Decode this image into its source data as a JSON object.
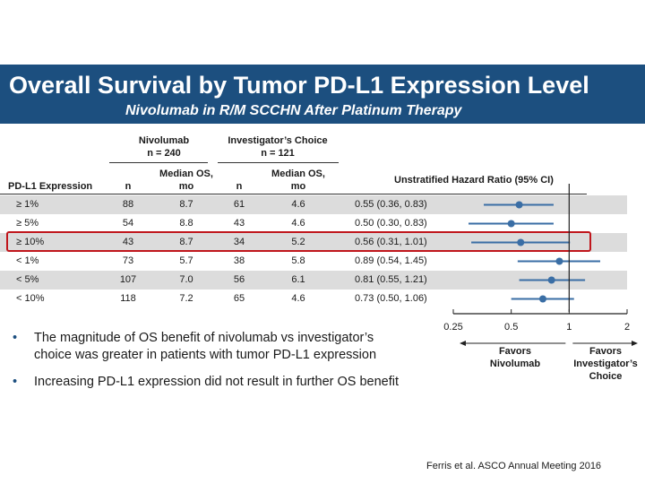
{
  "title": "Overall Survival by Tumor PD-L1 Expression Level",
  "subtitle": "Nivolumab in R/M SCCHN After Platinum Therapy",
  "table": {
    "group1_header": "Nivolumab",
    "group1_n": "n = 240",
    "group2_header": "Investigator’s Choice",
    "group2_n": "n = 121",
    "col_expr": "PD-L1 Expression",
    "col_n": "n",
    "col_os": "Median OS, mo",
    "col_hr": "Unstratified Hazard Ratio (95% CI)"
  },
  "chart_data": {
    "type": "forest",
    "title": "Unstratified Hazard Ratio (95% CI)",
    "axis_scale": "log",
    "xticks": [
      0.25,
      0.5,
      1,
      2
    ],
    "xtick_labels": [
      "0.25",
      "0.5",
      "1",
      "2"
    ],
    "xlim": [
      0.25,
      2
    ],
    "reference_line": 1,
    "rows": [
      {
        "label": "≥ 1%",
        "n_nivo": "88",
        "os_nivo": "8.7",
        "n_ic": "61",
        "os_ic": "4.6",
        "hr": 0.55,
        "lo": 0.36,
        "hi": 0.83,
        "hr_text": "0.55 (0.36, 0.83)",
        "shaded": true,
        "highlighted": false
      },
      {
        "label": "≥ 5%",
        "n_nivo": "54",
        "os_nivo": "8.8",
        "n_ic": "43",
        "os_ic": "4.6",
        "hr": 0.5,
        "lo": 0.3,
        "hi": 0.83,
        "hr_text": "0.50 (0.30, 0.83)",
        "shaded": false,
        "highlighted": false
      },
      {
        "label": "≥ 10%",
        "n_nivo": "43",
        "os_nivo": "8.7",
        "n_ic": "34",
        "os_ic": "5.2",
        "hr": 0.56,
        "lo": 0.31,
        "hi": 1.01,
        "hr_text": "0.56 (0.31, 1.01)",
        "shaded": true,
        "highlighted": true
      },
      {
        "label": "< 1%",
        "n_nivo": "73",
        "os_nivo": "5.7",
        "n_ic": "38",
        "os_ic": "5.8",
        "hr": 0.89,
        "lo": 0.54,
        "hi": 1.45,
        "hr_text": "0.89 (0.54, 1.45)",
        "shaded": false,
        "highlighted": false
      },
      {
        "label": "< 5%",
        "n_nivo": "107",
        "os_nivo": "7.0",
        "n_ic": "56",
        "os_ic": "6.1",
        "hr": 0.81,
        "lo": 0.55,
        "hi": 1.21,
        "hr_text": "0.81 (0.55, 1.21)",
        "shaded": true,
        "highlighted": false
      },
      {
        "label": "< 10%",
        "n_nivo": "118",
        "os_nivo": "7.2",
        "n_ic": "65",
        "os_ic": "4.6",
        "hr": 0.73,
        "lo": 0.5,
        "hi": 1.06,
        "hr_text": "0.73 (0.50, 1.06)",
        "shaded": false,
        "highlighted": false
      }
    ],
    "favors_left": "Favors Nivolumab",
    "favors_right": "Favors Investigator’s Choice"
  },
  "bullets": [
    "The magnitude of OS benefit of nivolumab vs investigator’s choice was greater in patients with tumor PD-L1 expression",
    "Increasing PD-L1 expression did not result in further OS benefit"
  ],
  "citation": "Ferris et al. ASCO Annual Meeting 2016",
  "colors": {
    "banner": "#1c4f7f",
    "marker": "#3a6ea5",
    "highlight": "#c0161c",
    "shade": "#dcdcdc"
  }
}
